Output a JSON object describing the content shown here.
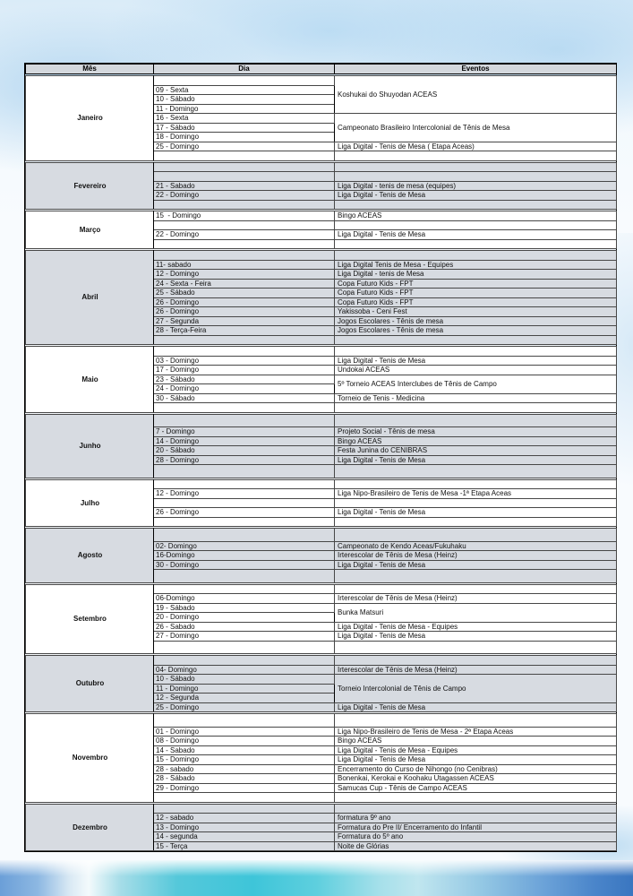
{
  "page": {
    "type": "event-calendar-document",
    "colors": {
      "section_shade": "#d7dbe1",
      "header_bg": "#d4d8dd",
      "table_border": "#000000",
      "watercolor_light_blue": "#bcd9ee",
      "watercolor_teal": "#45c6d9",
      "watercolor_deep_blue": "#4a86c8"
    }
  },
  "table": {
    "headers": [
      "Mês",
      "Dia",
      "Eventos"
    ],
    "months": [
      {
        "name": "Janeiro",
        "shaded": false,
        "rows": [
          {
            "d": "",
            "e": "Koshukai do Shuyodan ACEAS",
            "s": 4
          },
          {
            "d": "09 - Sexta"
          },
          {
            "d": "10 - Sábado"
          },
          {
            "d": "11 - Domingo"
          },
          {
            "d": "16 - Sexta",
            "e": "Campeonato Brasileiro Intercolonial de Tênis de Mesa",
            "s": 3
          },
          {
            "d": "17 - Sábado"
          },
          {
            "d": "18 - Domingo"
          },
          {
            "d": "25 - Domingo",
            "e": "Liga Digital - Tenis de Mesa ( Etapa Aceas)"
          },
          {
            "d": "",
            "e": ""
          }
        ]
      },
      {
        "name": "Fevereiro",
        "shaded": true,
        "rows": [
          {
            "d": "",
            "e": ""
          },
          {
            "d": "",
            "e": ""
          },
          {
            "d": "21 - Sabado",
            "e": "Liga Digital - tenis de mesa (equipes)"
          },
          {
            "d": "22 - Domingo",
            "e": "Liga Digital - Tenis de Mesa"
          },
          {
            "d": "",
            "e": ""
          }
        ]
      },
      {
        "name": "Março",
        "shaded": false,
        "rows": [
          {
            "d": "15  - Domingo",
            "e": "Bingo ACEAS"
          },
          {
            "d": "",
            "e": ""
          },
          {
            "d": "22 - Domingo",
            "e": "Liga Digital - Tenis de Mesa"
          },
          {
            "d": "",
            "e": ""
          }
        ]
      },
      {
        "name": "Abril",
        "shaded": true,
        "rows": [
          {
            "d": "",
            "e": ""
          },
          {
            "d": "11- sabado",
            "e": "Liga Digital Tenis de Mesa - Equipes"
          },
          {
            "d": "12 - Domingo",
            "e": "Liga Digital - tenis de Mesa"
          },
          {
            "d": "24 - Sexta - Feira",
            "e": "Copa Futuro Kids - FPT"
          },
          {
            "d": "25 - Sábado",
            "e": "Copa Futuro Kids - FPT"
          },
          {
            "d": "26 - Domingo",
            "e": "Copa Futuro Kids - FPT"
          },
          {
            "d": "26 - Domingo",
            "e": "Yakissoba - Ceni Fest"
          },
          {
            "d": "27 - Segunda",
            "e": "Jogos Escolares - Tênis de mesa"
          },
          {
            "d": "28 - Terça-Feira",
            "e": "Jogos Escolares - Tênis de mesa"
          },
          {
            "d": "",
            "e": ""
          }
        ]
      },
      {
        "name": "Maio",
        "shaded": false,
        "rows": [
          {
            "d": "",
            "e": ""
          },
          {
            "d": "03 - Domingo",
            "e": "Liga Digital - Tenis de Mesa"
          },
          {
            "d": "17 - Domingo",
            "e": "Undokai ACEAS"
          },
          {
            "d": "23 - Sábado",
            "e": "5º Torneio ACEAS Interclubes de Tênis de Campo",
            "s": 2
          },
          {
            "d": "24 - Domingo"
          },
          {
            "d": "30 - Sábado",
            "e": "Torneio de Tenis - Medicina"
          },
          {
            "d": "",
            "e": ""
          }
        ]
      },
      {
        "name": "Junho",
        "shaded": true,
        "rows": [
          {
            "d": "",
            "e": "",
            "tall": true
          },
          {
            "d": "7 - Domingo",
            "e": "Projeto Social - Tênis de mesa"
          },
          {
            "d": "14 - Domingo",
            "e": "Bingo ACEAS"
          },
          {
            "d": "20 - Sábado",
            "e": "Festa Junina do CENIBRAS"
          },
          {
            "d": "28 - Domingo",
            "e": "Liga Digital - Tenis de Mesa"
          },
          {
            "d": "",
            "e": "",
            "tall": true
          }
        ]
      },
      {
        "name": "Julho",
        "shaded": false,
        "rows": [
          {
            "d": "",
            "e": ""
          },
          {
            "d": "12 - Domingo",
            "e": "Liga Nipo-Brasileiro de Tenis de Mesa -1ª Etapa Aceas"
          },
          {
            "d": "",
            "e": ""
          },
          {
            "d": "26 - Domingo",
            "e": "Liga Digital - Tenis de Mesa"
          },
          {
            "d": "",
            "e": ""
          }
        ]
      },
      {
        "name": "Agosto",
        "shaded": true,
        "rows": [
          {
            "d": "",
            "e": "",
            "tall": true
          },
          {
            "d": "02- Domingo",
            "e": "Campeonato de Kendo Aceas/Fukuhaku"
          },
          {
            "d": "16-Domingo",
            "e": "Irterescolar de Tênis de Mesa (Heinz)"
          },
          {
            "d": "30 - Domingo",
            "e": "Liga Digital - Tenis de Mesa"
          },
          {
            "d": "",
            "e": "",
            "tall": true
          }
        ]
      },
      {
        "name": "Setembro",
        "shaded": false,
        "rows": [
          {
            "d": "",
            "e": ""
          },
          {
            "d": "06-Domingo",
            "e": "Irterescolar de Tênis de Mesa (Heinz)"
          },
          {
            "d": "19 - Sábado",
            "e": "Bunka Matsuri",
            "s": 2
          },
          {
            "d": "20 - Domingo"
          },
          {
            "d": "26 - Sabado",
            "e": "Liga Digital - Tenis de Mesa - Equipes"
          },
          {
            "d": "27 - Domingo",
            "e": "Liga Digital - Tenis de Mesa"
          },
          {
            "d": "",
            "e": "",
            "tall": true
          }
        ]
      },
      {
        "name": "Outubro",
        "shaded": true,
        "rows": [
          {
            "d": "",
            "e": ""
          },
          {
            "d": "04- Domingo",
            "e": "Irterescolar de Tênis de Mesa (Heinz)"
          },
          {
            "d": "10 - Sábado",
            "e": "Torneio Intercolonial de Tênis de Campo",
            "s": 3
          },
          {
            "d": "11 - Domingo"
          },
          {
            "d": "12 - Segunda"
          },
          {
            "d": "25 - Domingo",
            "e": "Liga Digital - Tenis de Mesa"
          }
        ]
      },
      {
        "name": "Novembro",
        "shaded": false,
        "rows": [
          {
            "d": "",
            "e": "",
            "tall": true
          },
          {
            "d": "01 - Domingo",
            "e": "Liga Nipo-Brasileiro de Tenis de Mesa - 2ª Etapa Aceas"
          },
          {
            "d": "08 - Domingo",
            "e": "Bingo ACEAS"
          },
          {
            "d": "14 - Sabado",
            "e": "Liga Digital - Tenis de Mesa - Equipes"
          },
          {
            "d": "15 - Domingo",
            "e": "Liga Digital - Tenis de Mesa"
          },
          {
            "d": "28 - sabado",
            "e": "Encerramento do Curso de Nihongo (no Cenibras)"
          },
          {
            "d": "28 - Sábado",
            "e": "Bonenkai, Kerokai e Koohaku Utagassen ACEAS"
          },
          {
            "d": "29 - Domingo",
            "e": "Samucas Cup - Tênis de Campo ACEAS"
          },
          {
            "d": "",
            "e": ""
          }
        ]
      },
      {
        "name": "Dezembro",
        "shaded": true,
        "rows": [
          {
            "d": "",
            "e": ""
          },
          {
            "d": "12 - sabado",
            "e": "formatura 9º ano"
          },
          {
            "d": "13 - Domingo",
            "e": "Formatura do Pre II/ Encerramento do Infantil"
          },
          {
            "d": "14 - segunda",
            "e": "Formatura do 5º ano"
          },
          {
            "d": "15 - Terça",
            "e": "Noite de Glórias"
          }
        ]
      }
    ]
  }
}
